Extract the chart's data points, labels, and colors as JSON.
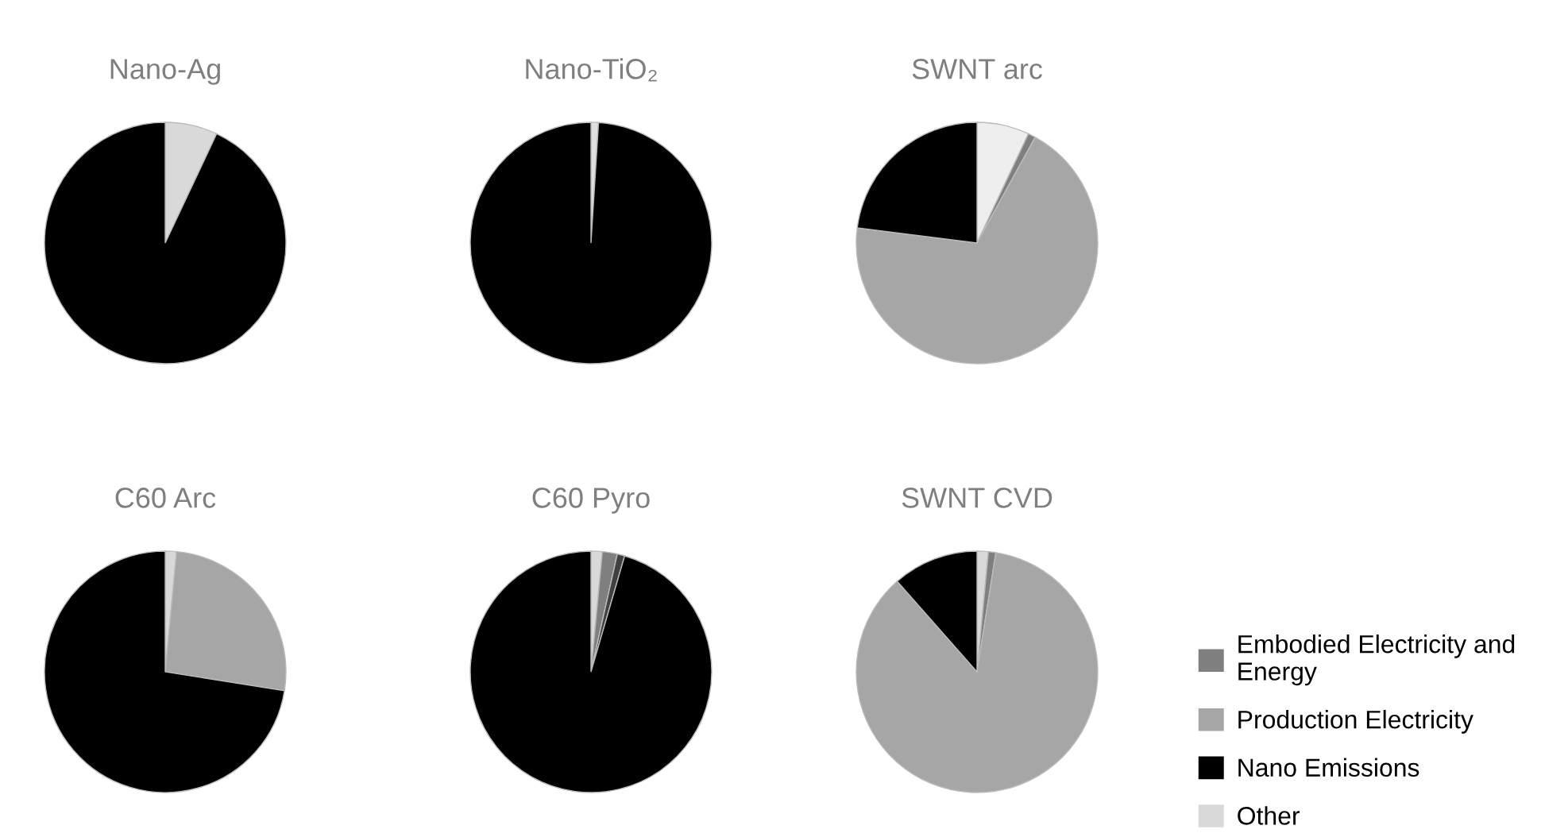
{
  "chart_data": [
    {
      "type": "pie",
      "title": "Nano-Ag",
      "categories": [
        null,
        null
      ],
      "values": [
        7,
        93
      ],
      "colors": [
        "#d9d9d9",
        "#000000"
      ]
    },
    {
      "type": "pie",
      "title": "Nano-TiO₂",
      "categories": [
        null,
        null
      ],
      "values": [
        1,
        99
      ],
      "colors": [
        "#e0e0e0",
        "#000000"
      ]
    },
    {
      "type": "pie",
      "title": "SWNT arc",
      "categories": [
        null,
        null,
        null,
        null
      ],
      "values": [
        7,
        1,
        69,
        23
      ],
      "colors": [
        "#eeeeee",
        "#7f7f7f",
        "#a6a6a6",
        "#000000"
      ]
    },
    {
      "type": "pie",
      "title": "C60 Arc",
      "categories": [
        null,
        null,
        null
      ],
      "values": [
        1.5,
        26,
        72.5
      ],
      "colors": [
        "#d9d9d9",
        "#a6a6a6",
        "#000000"
      ]
    },
    {
      "type": "pie",
      "title": "C60 Pyro",
      "categories": [
        null,
        null,
        null,
        null
      ],
      "values": [
        1.5,
        2,
        1,
        95.5
      ],
      "colors": [
        "#d9d9d9",
        "#7f7f7f",
        "#404040",
        "#000000"
      ]
    },
    {
      "type": "pie",
      "title": "SWNT CVD",
      "categories": [
        "Other",
        "Embodied Electricity and Energy",
        "Production Electricity",
        "Nano Emissions"
      ],
      "values": [
        1.5,
        1,
        86,
        11.5
      ],
      "colors": [
        "#d9d9d9",
        "#7f7f7f",
        "#a6a6a6",
        "#000000"
      ],
      "legend": "right"
    }
  ]
}
